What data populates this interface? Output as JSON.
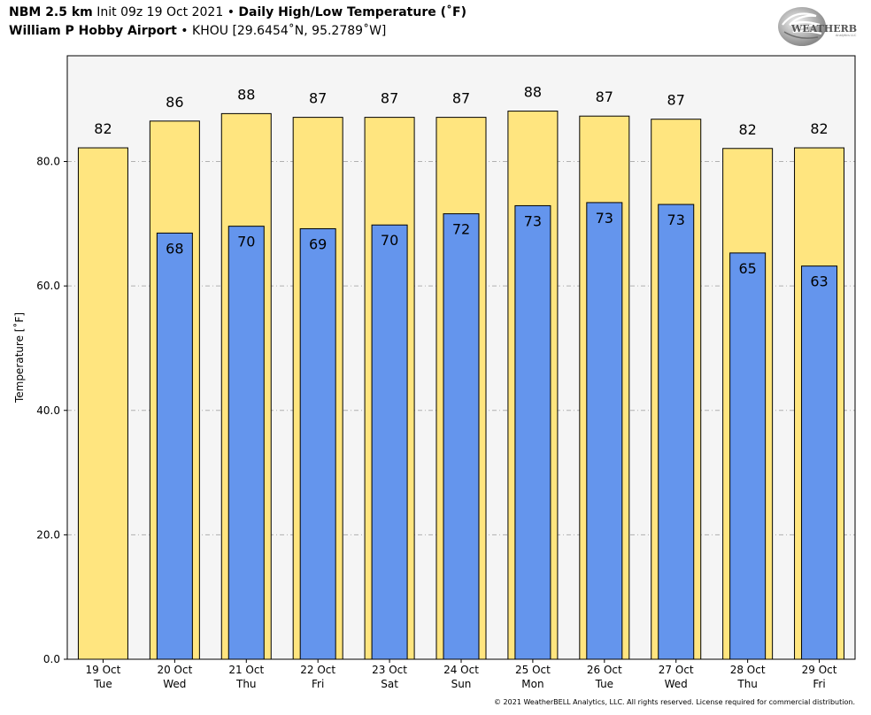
{
  "header": {
    "model": "NBM 2.5 km",
    "init": "Init 09z 19 Oct 2021",
    "bullet": "•",
    "title": "Daily High/Low Temperature (˚F)",
    "station": "William P Hobby Airport",
    "station_info": "KHOU [29.6454˚N, 95.2789˚W]"
  },
  "logo": {
    "text": "WEATHERBELL",
    "sub": "Analytics LLC",
    "icon": "weatherbell-swirl-logo"
  },
  "footer": "© 2021 WeatherBELL Analytics, LLC. All rights reserved. License required for commercial distribution.",
  "chart_data": {
    "type": "bar",
    "title": "Daily High/Low Temperature (˚F)",
    "ylabel": "Temperature [˚F]",
    "xlabel": "",
    "ylim": [
      0,
      97
    ],
    "yticks": [
      "0.0",
      "20.0",
      "40.0",
      "60.0",
      "80.0"
    ],
    "ytick_values": [
      0,
      20,
      40,
      60,
      80
    ],
    "grid": "horizontal dashed",
    "categories": [
      {
        "date": "19 Oct",
        "day": "Tue"
      },
      {
        "date": "20 Oct",
        "day": "Wed"
      },
      {
        "date": "21 Oct",
        "day": "Thu"
      },
      {
        "date": "22 Oct",
        "day": "Fri"
      },
      {
        "date": "23 Oct",
        "day": "Sat"
      },
      {
        "date": "24 Oct",
        "day": "Sun"
      },
      {
        "date": "25 Oct",
        "day": "Mon"
      },
      {
        "date": "26 Oct",
        "day": "Tue"
      },
      {
        "date": "27 Oct",
        "day": "Wed"
      },
      {
        "date": "28 Oct",
        "day": "Thu"
      },
      {
        "date": "29 Oct",
        "day": "Fri"
      }
    ],
    "series": [
      {
        "values": [
          82.2,
          86.5,
          87.7,
          87.1,
          87.1,
          87.1,
          88.1,
          87.3,
          86.8,
          82.1,
          82.2
        ],
        "labels": [
          "82",
          "86",
          "88",
          "87",
          "87",
          "87",
          "88",
          "87",
          "87",
          "82",
          "82"
        ],
        "color": "#FFE57F"
      },
      {
        "values": [
          null,
          68.5,
          69.6,
          69.2,
          69.8,
          71.6,
          72.9,
          73.4,
          73.1,
          65.3,
          63.2
        ],
        "labels": [
          "",
          "68",
          "70",
          "69",
          "70",
          "72",
          "73",
          "73",
          "73",
          "65",
          "63"
        ],
        "color": "#6495ED"
      }
    ],
    "plot_background": "#F5F5F5"
  }
}
